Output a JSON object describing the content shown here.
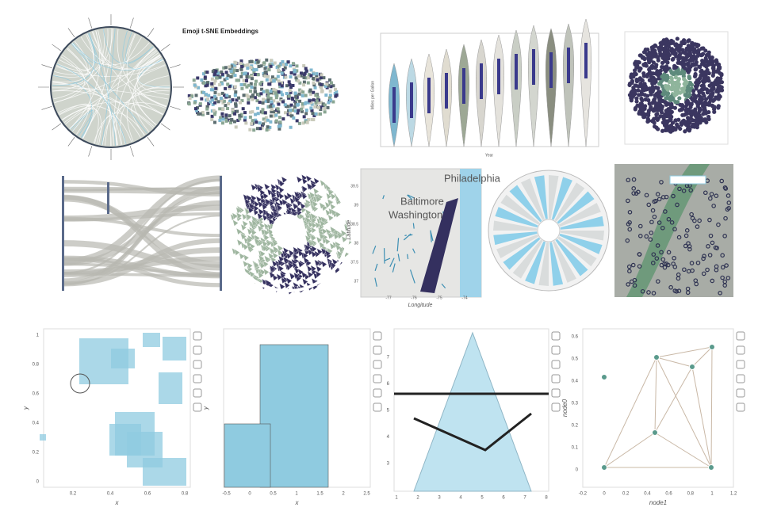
{
  "top": {
    "tsne_title": "Emoji t-SNE Embeddings",
    "violin": {
      "ylabel": "Miles per Gallon",
      "xlabel": "Year"
    },
    "map": {
      "cities": [
        "Philadelphia",
        "Baltimore",
        "Washington"
      ],
      "xlabel": "Longitude",
      "ylabel": "Latitude",
      "xticks": [
        -77,
        -76,
        -75,
        -74
      ],
      "yticks": [
        39.5,
        39,
        38.5,
        38,
        37.5,
        37
      ]
    }
  },
  "bottom": [
    {
      "xlabel": "x",
      "ylabel": "y",
      "xticks": [
        0.2,
        0.4,
        0.6,
        0.8
      ],
      "yticks": [
        0,
        0.2,
        0.4,
        0.6,
        0.8,
        1
      ]
    },
    {
      "xlabel": "x",
      "ylabel": "y",
      "xticks": [
        -0.5,
        0,
        0.5,
        1,
        1.5,
        2,
        2.5
      ]
    },
    {
      "xticks": [
        1,
        2,
        3,
        4,
        5,
        6,
        7,
        8
      ],
      "yticks": [
        3,
        4,
        5,
        6,
        7
      ]
    },
    {
      "xlabel": "node1",
      "ylabel": "node0",
      "xticks": [
        -0.2,
        0,
        0.2,
        0.4,
        0.6,
        0.8,
        1,
        1.2
      ],
      "yticks": [
        0,
        0.1,
        0.2,
        0.3,
        0.4,
        0.5,
        0.6
      ]
    }
  ]
}
